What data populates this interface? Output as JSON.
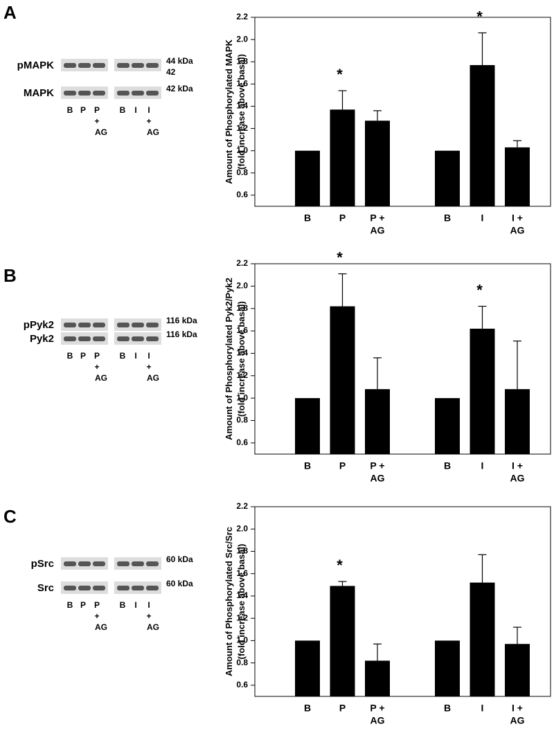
{
  "chart_data": [
    {
      "type": "bar",
      "panel": "A",
      "ylabel": [
        "Amount of Phosphorylated MAPK",
        "(fold increase above basal)"
      ],
      "categories": [
        [
          "B"
        ],
        [
          "P"
        ],
        [
          "P +",
          "AG"
        ],
        null,
        [
          "B"
        ],
        [
          "I"
        ],
        [
          "I +",
          "AG"
        ]
      ],
      "values": [
        1.0,
        1.37,
        1.27,
        null,
        1.0,
        1.77,
        1.03
      ],
      "errors": [
        null,
        0.17,
        0.09,
        null,
        null,
        0.29,
        0.06
      ],
      "significance": [
        null,
        "*",
        null,
        null,
        null,
        "*",
        null
      ],
      "color": "#000000",
      "ylim": [
        0.5,
        2.2
      ],
      "yticks": [
        0.6,
        0.8,
        {
          "value": 1,
          "label": "1.0"
        },
        1.2,
        1.4,
        1.6,
        1.8,
        {
          "value": 2,
          "label": "2.0"
        },
        2.2
      ]
    },
    {
      "type": "bar",
      "panel": "B",
      "ylabel": [
        "Amount of Phosphorylated Pyk2/Pyk2",
        "(fold increase above basal)"
      ],
      "categories": [
        [
          "B"
        ],
        [
          "P"
        ],
        [
          "P +",
          "AG"
        ],
        null,
        [
          "B"
        ],
        [
          "I"
        ],
        [
          "I +",
          "AG"
        ]
      ],
      "values": [
        1.0,
        1.82,
        1.08,
        null,
        1.0,
        1.62,
        1.08
      ],
      "errors": [
        null,
        0.29,
        0.28,
        null,
        null,
        0.2,
        0.43
      ],
      "significance": [
        null,
        "*",
        null,
        null,
        null,
        "*",
        null
      ],
      "color": "#000000",
      "ylim": [
        0.5,
        2.2
      ],
      "yticks": [
        0.6,
        0.8,
        {
          "value": 1,
          "label": "1.0"
        },
        1.2,
        1.4,
        1.6,
        1.8,
        {
          "value": 2,
          "label": "2.0"
        },
        2.2
      ]
    },
    {
      "type": "bar",
      "panel": "C",
      "ylabel": [
        "Amount of Phosphorylated Src/Src",
        "(fold increase above basal)"
      ],
      "categories": [
        [
          "B"
        ],
        [
          "P"
        ],
        [
          "P +",
          "AG"
        ],
        null,
        [
          "B"
        ],
        [
          "I"
        ],
        [
          "I +",
          "AG"
        ]
      ],
      "values": [
        1.0,
        1.49,
        0.82,
        null,
        1.0,
        1.52,
        0.97
      ],
      "errors": [
        null,
        0.04,
        0.15,
        null,
        null,
        0.25,
        0.15
      ],
      "significance": [
        null,
        "*",
        null,
        null,
        null,
        null,
        null
      ],
      "color": "#000000",
      "ylim": [
        0.5,
        2.2
      ],
      "yticks": [
        0.6,
        0.8,
        {
          "value": 1,
          "label": "1.0"
        },
        1.2,
        1.4,
        1.6,
        1.8,
        {
          "value": 2,
          "label": "2.0"
        },
        2.2
      ]
    }
  ],
  "blots": [
    {
      "rows": [
        {
          "name": "pMAPK",
          "kda": [
            "44 kDa",
            "42"
          ]
        },
        {
          "name": "MAPK",
          "kda": [
            "42 kDa"
          ]
        }
      ],
      "lanes": [
        [
          "B"
        ],
        [
          "P"
        ],
        [
          "P",
          "+",
          "AG"
        ],
        [
          "B"
        ],
        [
          "I"
        ],
        [
          "I",
          "+",
          "AG"
        ]
      ]
    },
    {
      "rows": [
        {
          "name": "pPyk2",
          "kda": [
            "116 kDa"
          ]
        },
        {
          "name": "Pyk2",
          "kda": [
            "116 kDa"
          ]
        }
      ],
      "lanes": [
        [
          "B"
        ],
        [
          "P"
        ],
        [
          "P",
          "+",
          "AG"
        ],
        [
          "B"
        ],
        [
          "I"
        ],
        [
          "I",
          "+",
          "AG"
        ]
      ]
    },
    {
      "rows": [
        {
          "name": "pSrc",
          "kda": [
            "60 kDa"
          ]
        },
        {
          "name": "Src",
          "kda": [
            "60 kDa"
          ]
        }
      ],
      "lanes": [
        [
          "B"
        ],
        [
          "P"
        ],
        [
          "P",
          "+",
          "AG"
        ],
        [
          "B"
        ],
        [
          "I"
        ],
        [
          "I",
          "+",
          "AG"
        ]
      ]
    }
  ]
}
